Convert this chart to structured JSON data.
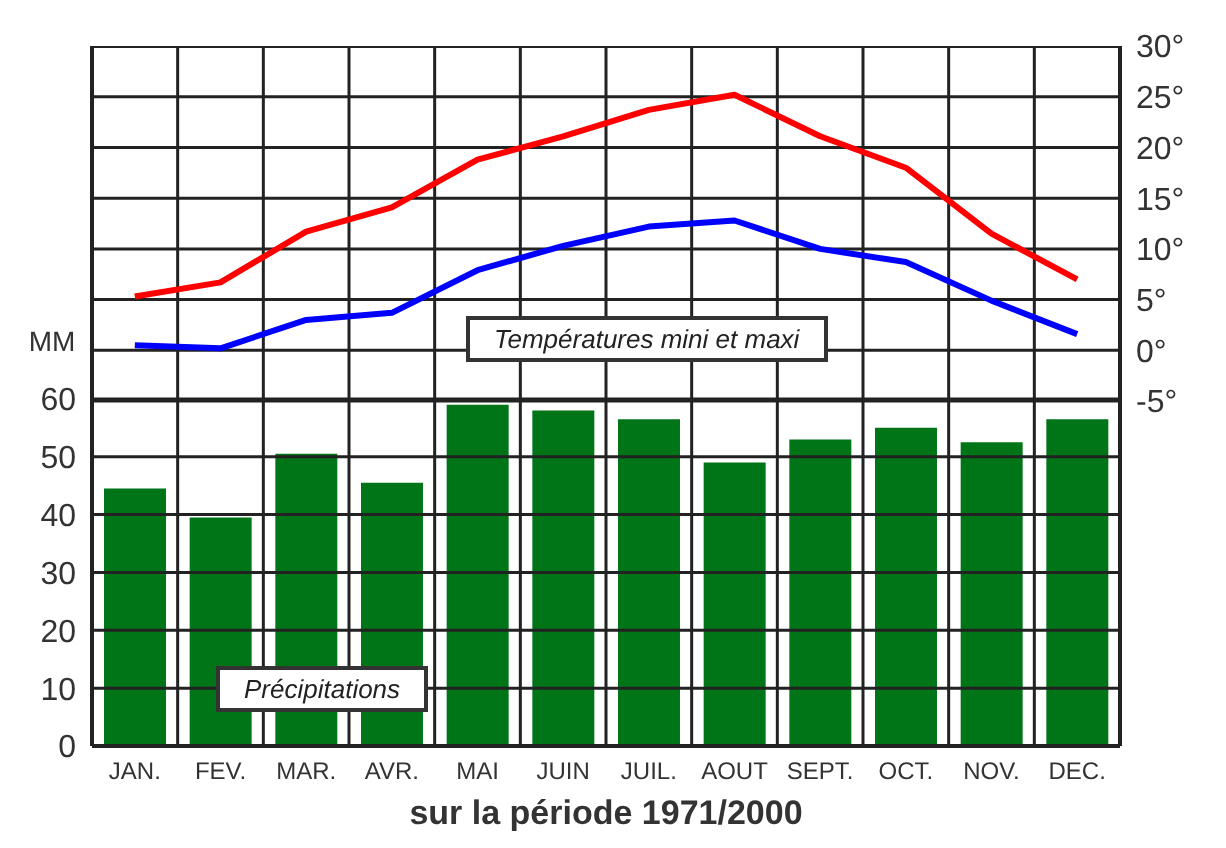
{
  "chart_data": {
    "type": "bar",
    "xlabel": "sur la période 1971/2000",
    "ylabel": "MM",
    "categories": [
      "JAN.",
      "FEV.",
      "MAR.",
      "AVR.",
      "MAI",
      "JUIN",
      "JUIL.",
      "AOUT",
      "SEPT.",
      "OCT.",
      "NOV.",
      "DEC."
    ],
    "series": [
      {
        "color": "#007518",
        "values": [
          44.5,
          39.5,
          50.5,
          45.5,
          59,
          58,
          56.5,
          49,
          53,
          55,
          52.5,
          56.5
        ]
      },
      {
        "type": "line",
        "axis": "y2",
        "color": "#ff0000",
        "values": [
          5.3,
          6.7,
          11.7,
          14.1,
          18.8,
          21.1,
          23.7,
          25.2,
          21.1,
          18,
          11.5,
          7
        ]
      },
      {
        "type": "line",
        "axis": "y2",
        "color": "#0000ff",
        "values": [
          0.5,
          0.2,
          3,
          3.7,
          7.9,
          10.3,
          12.2,
          12.8,
          10,
          8.7,
          4.9,
          1.6
        ]
      }
    ],
    "ylim": [
      0,
      121
    ],
    "yticks": [
      0,
      10,
      20,
      30,
      40,
      50,
      60
    ],
    "y2lim": [
      -39,
      30
    ],
    "y2ticks": [
      {
        "value": -5,
        "label": "-5°"
      },
      {
        "value": 0,
        "label": "0°"
      },
      {
        "value": 5,
        "label": "5°"
      },
      {
        "value": 10,
        "label": "10°"
      },
      {
        "value": 15,
        "label": "15°"
      },
      {
        "value": 20,
        "label": "20°"
      },
      {
        "value": 25,
        "label": "25°"
      },
      {
        "value": 30,
        "label": "30°"
      }
    ],
    "annotations": [
      "Températures mini et maxi",
      "Précipitations"
    ],
    "grid": true,
    "marker": "none",
    "line_style": "solid"
  }
}
